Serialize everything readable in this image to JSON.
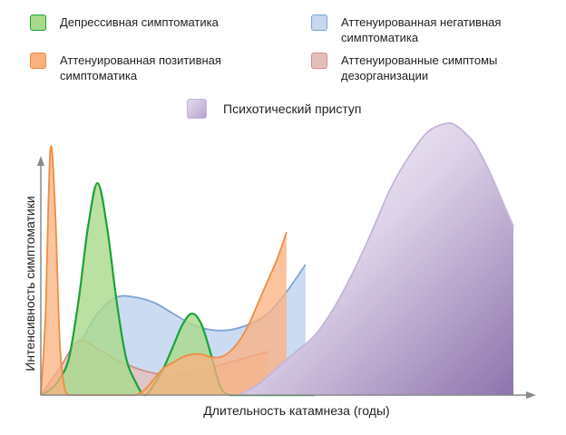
{
  "chart_data": {
    "type": "area",
    "xlabel": "Длительность катамнеза (годы)",
    "ylabel": "Интенсивность симптоматики",
    "grid": false,
    "legend_position": "top",
    "xlim": [
      0,
      100
    ],
    "ylim": [
      0,
      100
    ],
    "series": [
      {
        "name": "Депрессивная симптоматика",
        "fill": "#a9d98b",
        "stroke": "#1aa23a",
        "x": [
          0,
          2,
          4,
          6,
          8,
          10,
          12,
          14,
          16,
          18,
          20,
          22,
          24,
          26,
          28,
          30,
          32,
          34,
          36,
          38,
          40,
          42,
          44,
          46,
          48,
          50,
          52,
          54,
          56,
          58
        ],
        "values": [
          0,
          2,
          6,
          14,
          35,
          62,
          78,
          62,
          35,
          14,
          5,
          0,
          4,
          10,
          18,
          26,
          30,
          26,
          15,
          3,
          0,
          0,
          0,
          0,
          0,
          0,
          0,
          0,
          0,
          0
        ]
      },
      {
        "name": "Аттенуированная позитивная симптоматика",
        "fill": "#fbb07f",
        "stroke": "#f08c42",
        "x": [
          0,
          1,
          2,
          3,
          4,
          5,
          6,
          8,
          10,
          12,
          14,
          16,
          18,
          20,
          22,
          24,
          26,
          28,
          30,
          32,
          34,
          36,
          38,
          40,
          42,
          44,
          46,
          48,
          50,
          52
        ],
        "values": [
          0,
          30,
          90,
          70,
          20,
          3,
          0,
          0,
          0,
          0,
          0,
          0,
          0,
          0,
          2,
          6,
          10,
          12,
          14,
          15,
          15,
          14,
          14,
          16,
          20,
          26,
          34,
          42,
          50,
          60
        ]
      },
      {
        "name": "Аттенуированная негативная симптоматика",
        "fill": "#c5d7ef",
        "stroke": "#7ea4d6",
        "x": [
          0,
          4,
          8,
          12,
          16,
          20,
          24,
          28,
          32,
          36,
          40,
          44,
          48,
          52,
          56
        ],
        "values": [
          0,
          6,
          18,
          30,
          36,
          36,
          34,
          30,
          26,
          24,
          24,
          26,
          30,
          38,
          48
        ]
      },
      {
        "name": "Аттенуированные симптомы дезорганизации",
        "fill": "#e3bfbb",
        "stroke": "#cf8f88",
        "x": [
          0,
          4,
          8,
          12,
          16,
          20,
          24,
          28,
          32,
          36,
          40,
          44,
          48
        ],
        "values": [
          0,
          10,
          20,
          17,
          13,
          10,
          8,
          7,
          8,
          10,
          12,
          14,
          16
        ]
      },
      {
        "name": "Психотический приступ",
        "fill": "#c7b6d8",
        "stroke": "#c2b6d9",
        "x": [
          42,
          46,
          50,
          54,
          58,
          62,
          66,
          70,
          74,
          78,
          82,
          86,
          88,
          90,
          92,
          95,
          98,
          100
        ],
        "values": [
          0,
          4,
          10,
          16,
          22,
          32,
          45,
          60,
          76,
          88,
          97,
          100,
          99,
          96,
          92,
          82,
          70,
          62
        ]
      }
    ]
  }
}
